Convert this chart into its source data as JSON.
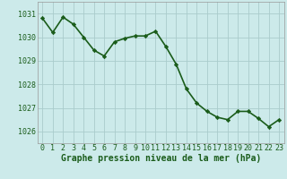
{
  "x": [
    0,
    1,
    2,
    3,
    4,
    5,
    6,
    7,
    8,
    9,
    10,
    11,
    12,
    13,
    14,
    15,
    16,
    17,
    18,
    19,
    20,
    21,
    22,
    23
  ],
  "y": [
    1030.8,
    1030.2,
    1030.85,
    1030.55,
    1030.0,
    1029.45,
    1029.2,
    1029.8,
    1029.95,
    1030.05,
    1030.05,
    1030.25,
    1029.6,
    1028.85,
    1027.8,
    1027.2,
    1026.85,
    1026.6,
    1026.5,
    1026.85,
    1026.85,
    1026.55,
    1026.2,
    1026.5
  ],
  "line_color": "#1a5c1a",
  "marker": "D",
  "marker_size": 2.2,
  "line_width": 1.2,
  "bg_color": "#cceaea",
  "grid_color": "#aacccc",
  "xlabel": "Graphe pression niveau de la mer (hPa)",
  "xlabel_color": "#1a5c1a",
  "xlabel_fontsize": 7,
  "tick_color": "#1a5c1a",
  "tick_fontsize": 6,
  "ylim": [
    1025.5,
    1031.5
  ],
  "yticks": [
    1026,
    1027,
    1028,
    1029,
    1030,
    1031
  ],
  "xticks": [
    0,
    1,
    2,
    3,
    4,
    5,
    6,
    7,
    8,
    9,
    10,
    11,
    12,
    13,
    14,
    15,
    16,
    17,
    18,
    19,
    20,
    21,
    22,
    23
  ]
}
